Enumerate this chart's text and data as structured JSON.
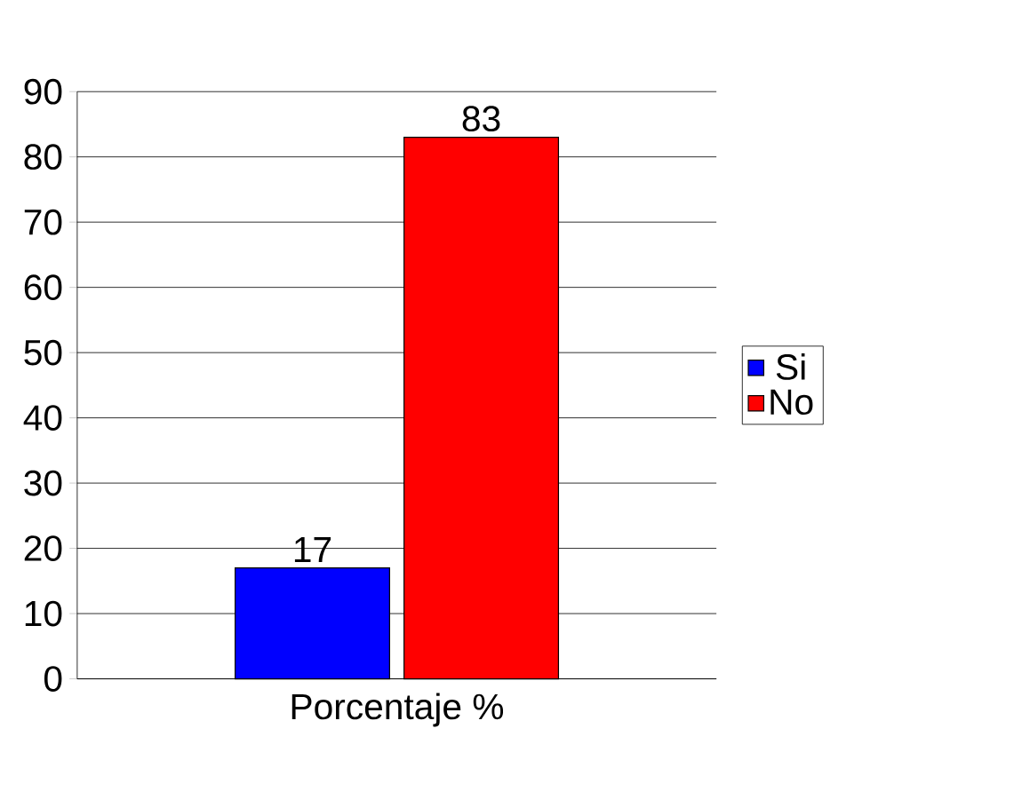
{
  "chart_data": {
    "type": "bar",
    "categories": [
      "Porcentaje %"
    ],
    "series": [
      {
        "name": "Si",
        "color": "#0000ff",
        "values": [
          17
        ]
      },
      {
        "name": "No",
        "color": "#ff0000",
        "values": [
          83
        ]
      }
    ],
    "ylim": [
      0,
      90
    ],
    "yticks": [
      0,
      10,
      20,
      30,
      40,
      50,
      60,
      70,
      80,
      90
    ],
    "grid": "y",
    "legend": "right",
    "data_labels": true
  }
}
